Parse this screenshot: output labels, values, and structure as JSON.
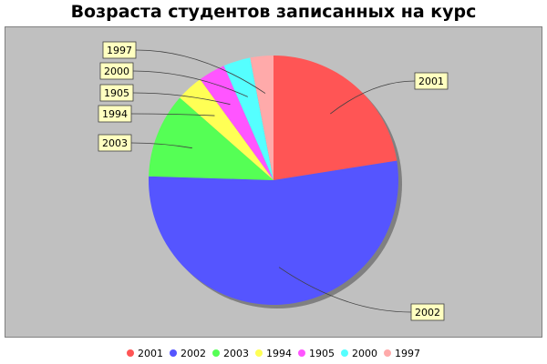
{
  "chart_data": {
    "type": "pie",
    "title": "Возраста студентов записанных на курс",
    "categories": [
      "2001",
      "2002",
      "2003",
      "1994",
      "1905",
      "2000",
      "1997"
    ],
    "values": [
      22.5,
      53.0,
      11.0,
      3.5,
      3.5,
      3.5,
      3.0
    ],
    "colors": [
      "#ff5555",
      "#5555ff",
      "#55ff55",
      "#ffff55",
      "#ff55ff",
      "#55ffff",
      "#ffaaaa"
    ],
    "legend_position": "bottom"
  }
}
